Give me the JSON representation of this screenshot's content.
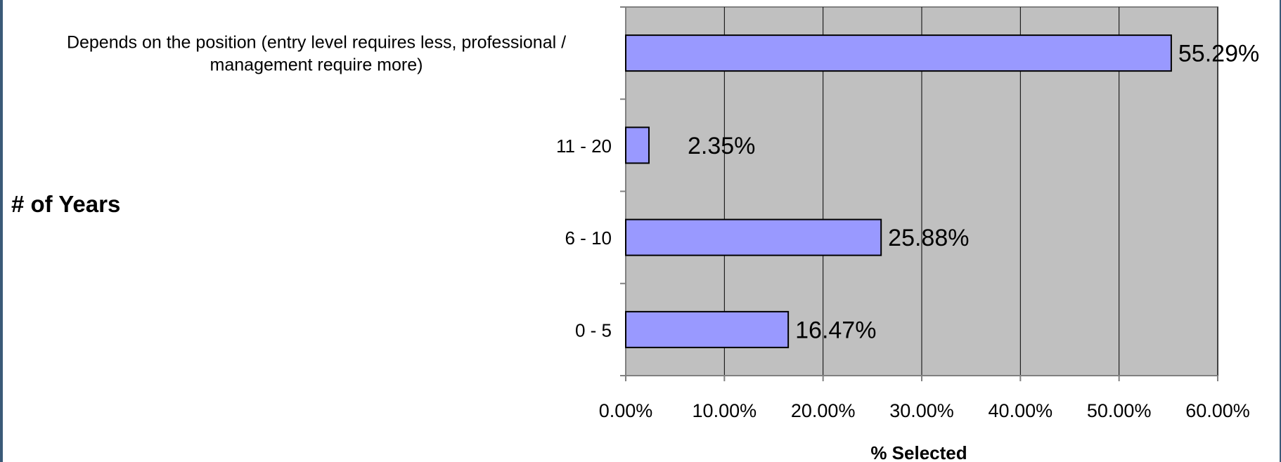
{
  "chart_data": {
    "type": "bar",
    "orientation": "horizontal",
    "categories": [
      "0 - 5",
      "6 - 10",
      "11 - 20",
      "Depends on the position (entry level requires less, professional / management require more)"
    ],
    "category_label_lines": [
      [
        "0 - 5"
      ],
      [
        "6 - 10"
      ],
      [
        "11 - 20"
      ],
      [
        "Depends on the position (entry level requires less, professional /",
        "management require more)"
      ]
    ],
    "values": [
      16.47,
      25.88,
      2.35,
      55.29
    ],
    "data_labels": [
      "16.47%",
      "25.88%",
      "2.35%",
      "55.29%"
    ],
    "xlabel": "% Selected",
    "ylabel": "# of Years",
    "xlim": [
      0,
      60
    ],
    "xticks": [
      0,
      10,
      20,
      30,
      40,
      50,
      60
    ],
    "xtick_labels": [
      "0.00%",
      "10.00%",
      "20.00%",
      "30.00%",
      "40.00%",
      "50.00%",
      "60.00%"
    ],
    "grid": "vertical",
    "legend": "none",
    "colors": {
      "bar_fill": "#9999ff",
      "bar_stroke": "#000000",
      "plot_background": "#c0c0c0",
      "gridline": "#000000",
      "axis": "#808080"
    }
  }
}
